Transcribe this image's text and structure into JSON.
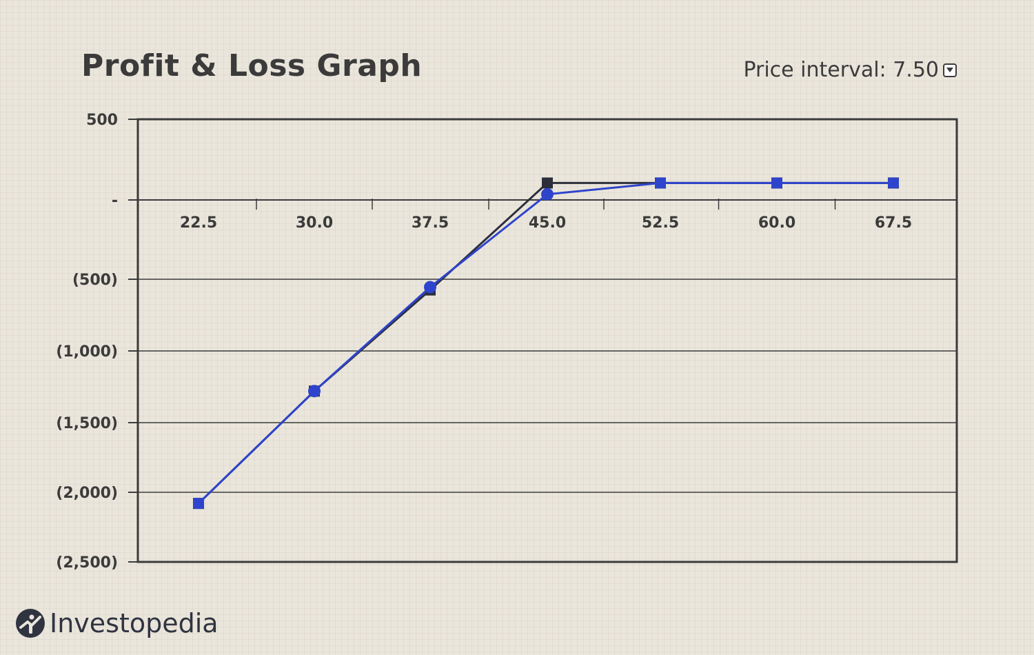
{
  "header": {
    "title": "Profit & Loss Graph",
    "interval_label": "Price interval: 7.50"
  },
  "brand": {
    "name": "Investopedia"
  },
  "chart_data": {
    "type": "line",
    "title": "Profit & Loss Graph",
    "xlabel": "",
    "ylabel": "",
    "categories": [
      "22.5",
      "30.0",
      "37.5",
      "45.0",
      "52.5",
      "60.0",
      "67.5"
    ],
    "x": [
      22.5,
      30.0,
      37.5,
      45.0,
      52.5,
      60.0,
      67.5
    ],
    "y_tick_values": [
      500,
      0,
      -500,
      -1000,
      -1500,
      -2000,
      -2500
    ],
    "y_tick_labels": [
      "500",
      "-",
      "(500)",
      "(1,000)",
      "(1,500)",
      "(2,000)",
      "(2,500)"
    ],
    "ylim": [
      -2500,
      500
    ],
    "grid": true,
    "legend": "none",
    "series": [
      {
        "values": [
          -2080,
          -1280,
          -575,
          105,
          105,
          105,
          105
        ],
        "color": "#2c2f3a",
        "marker": "square"
      },
      {
        "values": [
          -2080,
          -1280,
          -555,
          35,
          105,
          105,
          105
        ],
        "color": "#2e44cc",
        "marker": "circle"
      }
    ]
  },
  "colors": {
    "background": "#ebe6dc",
    "axis": "#3b3b3b",
    "series_dark": "#2c2f3a",
    "series_blue": "#2e44cc"
  },
  "icons": {
    "dropdown": "chevron-down-icon",
    "logo": "investopedia-logo-icon"
  }
}
